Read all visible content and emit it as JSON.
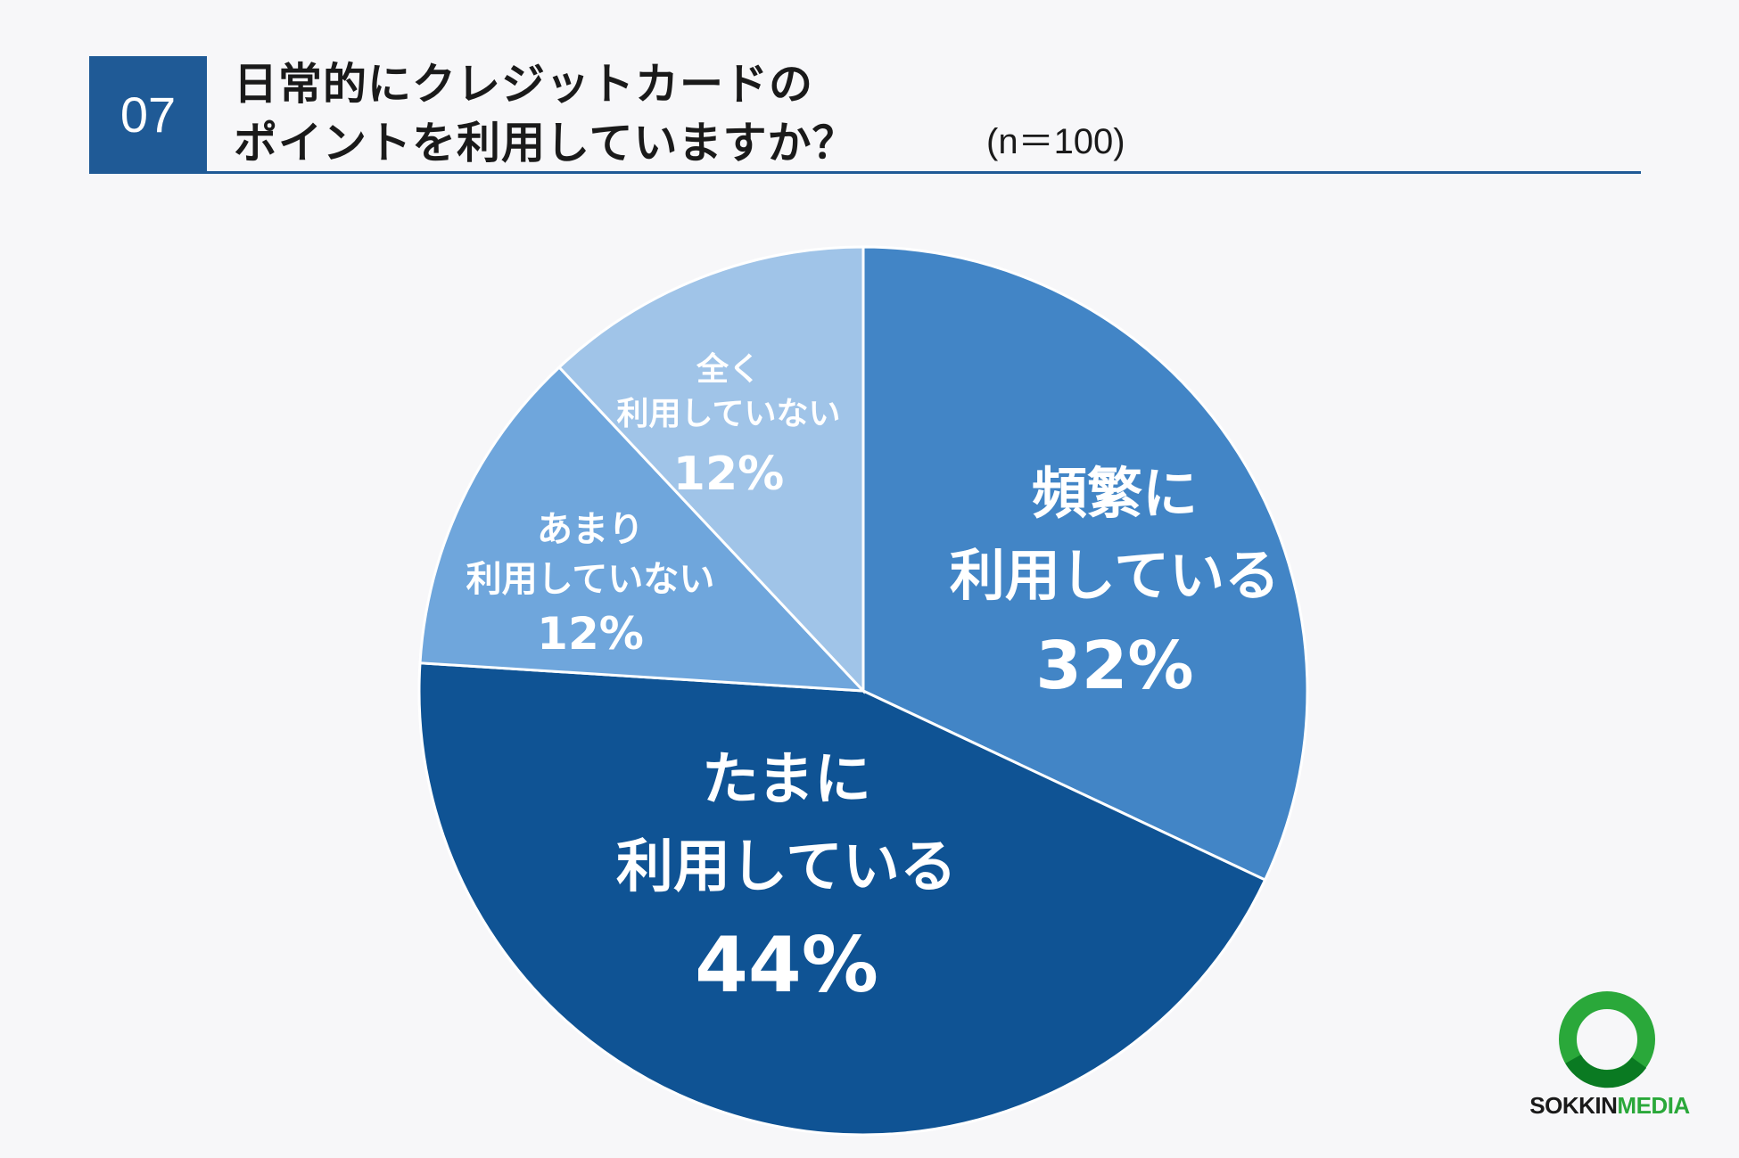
{
  "header": {
    "number": "07",
    "title_line1": "日常的にクレジットカードの",
    "title_line2": "ポイントを利用していますか？",
    "sample_size": "(n＝100)"
  },
  "chart_data": {
    "type": "pie",
    "slices": [
      {
        "line1": "頻繁に",
        "line2": "利用している",
        "pct_label": "32%",
        "value": 32,
        "color": "#4285c6"
      },
      {
        "line1": "たまに",
        "line2": "利用している",
        "pct_label": "44%",
        "value": 44,
        "color": "#0f5394"
      },
      {
        "line1": "あまり",
        "line2": "利用していない",
        "pct_label": "12%",
        "value": 12,
        "color": "#6fa6dc"
      },
      {
        "line1": "全く",
        "line2": "利用していない",
        "pct_label": "12%",
        "value": 12,
        "color": "#a0c4e8"
      }
    ],
    "start_angle_deg": 0,
    "direction": "clockwise"
  },
  "logo": {
    "text_a": "SOKKIN",
    "text_b": "MEDIA",
    "ring_colors": [
      "#2aa83a",
      "#0a7a22"
    ]
  }
}
